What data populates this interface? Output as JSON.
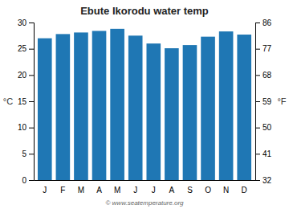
{
  "chart_data": {
    "type": "bar",
    "title": "Ebute Ikorodu water temp",
    "categories": [
      "J",
      "F",
      "M",
      "A",
      "M",
      "J",
      "J",
      "A",
      "S",
      "O",
      "N",
      "D"
    ],
    "values": [
      27.0,
      27.8,
      28.1,
      28.4,
      28.8,
      27.5,
      26.0,
      25.1,
      25.7,
      27.3,
      28.3,
      27.7
    ],
    "ylabel": "°C",
    "y2label": "°F",
    "ylim": [
      0,
      30
    ],
    "yticks": [
      0,
      5,
      10,
      15,
      20,
      25,
      30
    ],
    "y2lim": [
      32,
      86
    ],
    "y2ticks": [
      32,
      41,
      50,
      59,
      68,
      77,
      86
    ],
    "grid": false,
    "annotations": [
      "© www.seatemperature.org"
    ]
  }
}
